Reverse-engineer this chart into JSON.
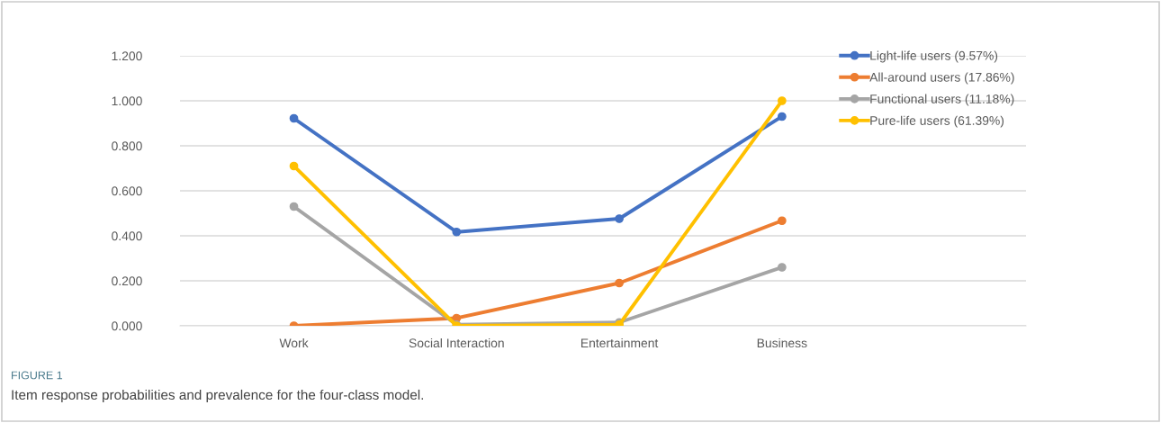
{
  "chart_data": {
    "type": "line",
    "title": "FIGURE 1",
    "subtitle": "Item response probabilities and prevalence for the four-class model.",
    "categories": [
      "Work",
      "Social Interaction",
      "Entertainment",
      "Business"
    ],
    "series": [
      {
        "name": "Light-life users (9.57%)",
        "color": "#4472c4",
        "values": [
          0.922,
          0.417,
          0.476,
          0.93
        ]
      },
      {
        "name": "All-around users (17.86%)",
        "color": "#ed7d31",
        "values": [
          0.0,
          0.034,
          0.19,
          0.467
        ]
      },
      {
        "name": "Functional users (11.18%)",
        "color": "#a5a5a5",
        "values": [
          0.53,
          0.005,
          0.015,
          0.26
        ]
      },
      {
        "name": "Pure-life users (61.39%)",
        "color": "#ffc000",
        "values": [
          0.71,
          0.0,
          0.005,
          1.0
        ]
      }
    ],
    "ylim": [
      0,
      1.2
    ],
    "yticks": [
      {
        "value": 0,
        "label": "0.000"
      },
      {
        "value": 0.2,
        "label": "0.200"
      },
      {
        "value": 0.4,
        "label": "0.400"
      },
      {
        "value": 0.6,
        "label": "0.600"
      },
      {
        "value": 0.8,
        "label": "0.800"
      },
      {
        "value": 1.0,
        "label": "1.000"
      },
      {
        "value": 1.2,
        "label": "1.200"
      }
    ],
    "grid": "y",
    "legend": "top right",
    "marker": "circle",
    "line_style": "solid"
  }
}
